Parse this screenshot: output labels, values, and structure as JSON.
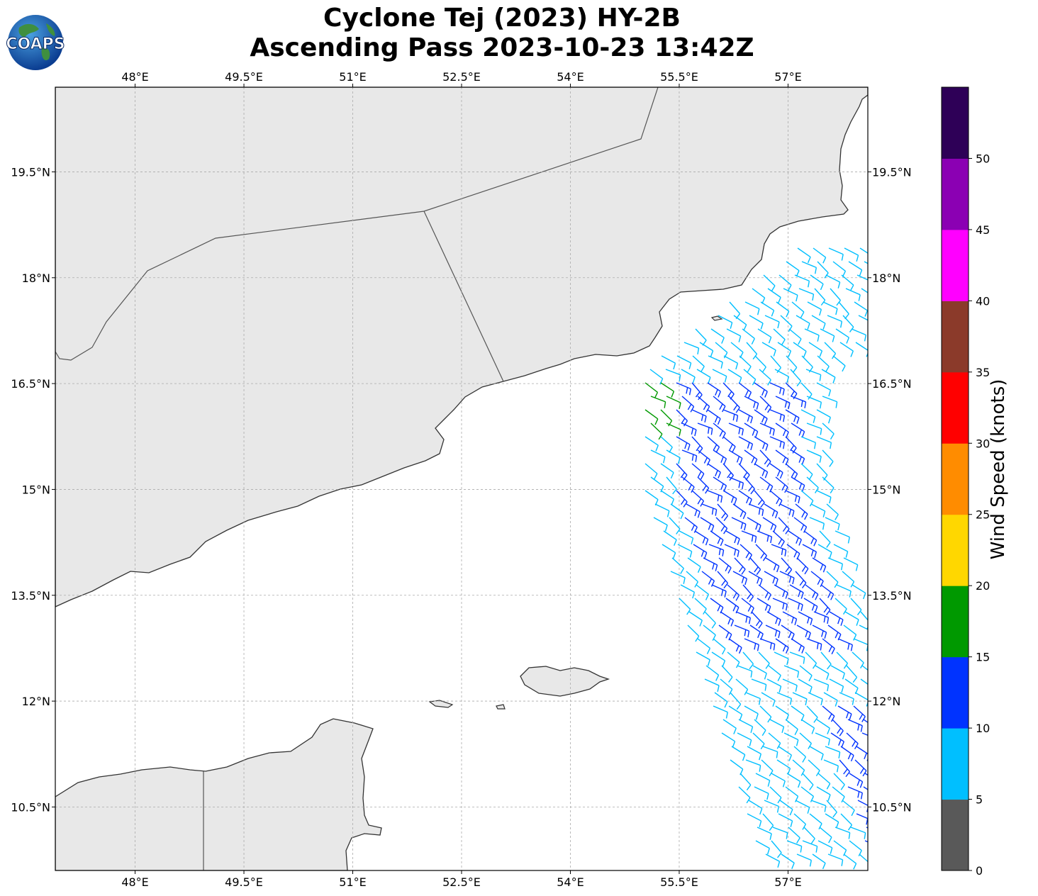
{
  "header": {
    "title_line1": "Cyclone Tej (2023) HY-2B",
    "title_line2": "Ascending Pass 2023-10-23 13:42Z",
    "logo_text": "COAPS"
  },
  "map": {
    "lon_range": [
      46.9,
      58.1
    ],
    "lat_range": [
      9.6,
      20.7
    ],
    "lon_ticks": [
      {
        "value": 48.0,
        "label": "48°E"
      },
      {
        "value": 49.5,
        "label": "49.5°E"
      },
      {
        "value": 51.0,
        "label": "51°E"
      },
      {
        "value": 52.5,
        "label": "52.5°E"
      },
      {
        "value": 54.0,
        "label": "54°E"
      },
      {
        "value": 55.5,
        "label": "55.5°E"
      },
      {
        "value": 57.0,
        "label": "57°E"
      }
    ],
    "lat_ticks": [
      {
        "value": 19.5,
        "label": "19.5°N"
      },
      {
        "value": 18.0,
        "label": "18°N"
      },
      {
        "value": 16.5,
        "label": "16.5°N"
      },
      {
        "value": 15.0,
        "label": "15°N"
      },
      {
        "value": 13.5,
        "label": "13.5°N"
      },
      {
        "value": 12.0,
        "label": "12°N"
      },
      {
        "value": 10.5,
        "label": "10.5°N"
      }
    ],
    "gridlines": true,
    "land_color": "#e6e6e6",
    "coast_color": "#333333"
  },
  "colorbar": {
    "label": "Wind Speed (knots)",
    "ticks": [
      "0",
      "5",
      "10",
      "15",
      "20",
      "25",
      "30",
      "35",
      "40",
      "45",
      "50"
    ],
    "colors": [
      "#595959",
      "#00bfff",
      "#0033ff",
      "#009900",
      "#ffd700",
      "#ff8c00",
      "#ff0000",
      "#8b3a2a",
      "#ff00ff",
      "#8b00b3",
      "#2e0057"
    ]
  }
}
